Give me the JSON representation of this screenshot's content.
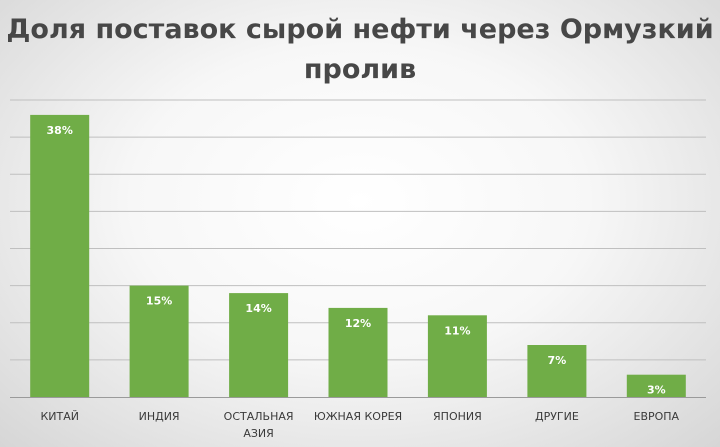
{
  "chart_data": {
    "type": "bar",
    "title": "Доля поставок сырой нефти через Ормузкий пролив",
    "title_lines": [
      "Доля поставок сырой нефти через Ормузкий",
      "пролив"
    ],
    "categories": [
      [
        "КИТАЙ"
      ],
      [
        "ИНДИЯ"
      ],
      [
        "ОСТАЛЬНАЯ",
        "АЗИЯ"
      ],
      [
        "ЮЖНАЯ КОРЕЯ"
      ],
      [
        "ЯПОНИЯ"
      ],
      [
        "ДРУГИЕ"
      ],
      [
        "ЕВРОПА"
      ]
    ],
    "values": [
      38,
      15,
      14,
      12,
      11,
      7,
      3
    ],
    "data_labels": [
      "38%",
      "15%",
      "14%",
      "12%",
      "11%",
      "7%",
      "3%"
    ],
    "ylim": [
      0,
      40
    ],
    "grid": true,
    "bar_color": "#70ad47",
    "grid_color": "#bfbfbf"
  }
}
